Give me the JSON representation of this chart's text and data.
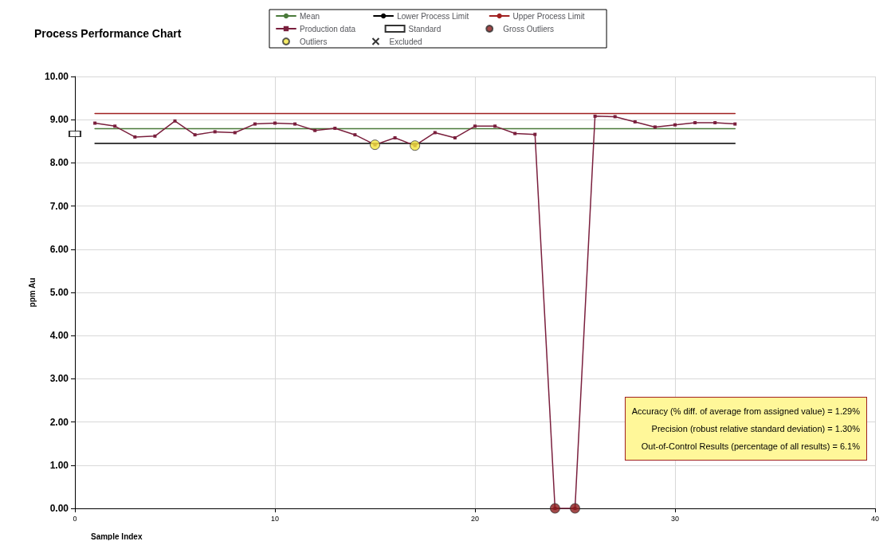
{
  "chart_data": {
    "type": "line",
    "title": "Process Performance Chart",
    "xlabel": "Sample Index",
    "ylabel": "ppm Au",
    "xlim": [
      0,
      40
    ],
    "xticks": [
      0,
      10,
      20,
      30,
      40
    ],
    "ylim": [
      0,
      10
    ],
    "yticks": [
      {
        "value": 0,
        "label": "0.00"
      },
      {
        "value": 1,
        "label": "1.00"
      },
      {
        "value": 2,
        "label": "2.00"
      },
      {
        "value": 3,
        "label": "3.00"
      },
      {
        "value": 4,
        "label": "4.00"
      },
      {
        "value": 5,
        "label": "5.00"
      },
      {
        "value": 6,
        "label": "6.00"
      },
      {
        "value": 7,
        "label": "7.00"
      },
      {
        "value": 8,
        "label": "8.00"
      },
      {
        "value": 9,
        "label": "9.00"
      },
      {
        "value": 10,
        "label": "10.00"
      }
    ],
    "grid": true,
    "legend": "top",
    "series": [
      {
        "name": "Mean",
        "type": "line",
        "color": "#4a7a3a",
        "marker": "none",
        "x": [
          1,
          33
        ],
        "values": [
          8.79,
          8.79
        ]
      },
      {
        "name": "Lower Process Limit",
        "type": "line",
        "color": "#000000",
        "marker": "none",
        "x": [
          1,
          33
        ],
        "values": [
          8.45,
          8.45
        ]
      },
      {
        "name": "Upper Process Limit",
        "type": "line",
        "color": "#a02020",
        "marker": "none",
        "x": [
          1,
          33
        ],
        "values": [
          9.14,
          9.14
        ]
      },
      {
        "name": "Production data",
        "color": "#7a1f3d",
        "marker": "square",
        "line_style": "solid",
        "x": [
          1,
          2,
          3,
          4,
          5,
          6,
          7,
          8,
          9,
          10,
          11,
          12,
          13,
          14,
          15,
          16,
          17,
          18,
          19,
          20,
          21,
          22,
          23,
          24,
          25,
          26,
          27,
          28,
          29,
          30,
          31,
          32,
          33
        ],
        "values": [
          8.92,
          8.85,
          8.6,
          8.62,
          8.97,
          8.65,
          8.72,
          8.7,
          8.9,
          8.92,
          8.9,
          8.75,
          8.8,
          8.65,
          8.42,
          8.58,
          8.4,
          8.7,
          8.58,
          8.85,
          8.85,
          8.68,
          8.66,
          0,
          0,
          9.08,
          9.07,
          8.95,
          8.83,
          8.88,
          8.93,
          8.93,
          8.9
        ]
      },
      {
        "name": "Standard",
        "type": "scatter",
        "color": "#000000",
        "marker": "square",
        "x": [
          0
        ],
        "values": [
          8.67
        ]
      },
      {
        "name": "Gross Outliers",
        "type": "scatter",
        "color": "#8b1a1a",
        "marker": "circle",
        "x": [
          24,
          25
        ],
        "values": [
          0,
          0
        ]
      },
      {
        "name": "Outliers",
        "type": "scatter",
        "color": "#f2e640",
        "marker": "circle",
        "x": [
          15,
          17
        ],
        "values": [
          8.42,
          8.4
        ]
      },
      {
        "name": "Excluded",
        "type": "scatter",
        "color": "#000000",
        "marker": "cross"
      }
    ],
    "annotations": [
      "Accuracy (% diff. of average from assigned value) = 1.29%",
      "Precision (robust relative standard deviation) = 1.30%",
      "Out-of-Control Results (percentage of all results) = 6.1%"
    ]
  }
}
